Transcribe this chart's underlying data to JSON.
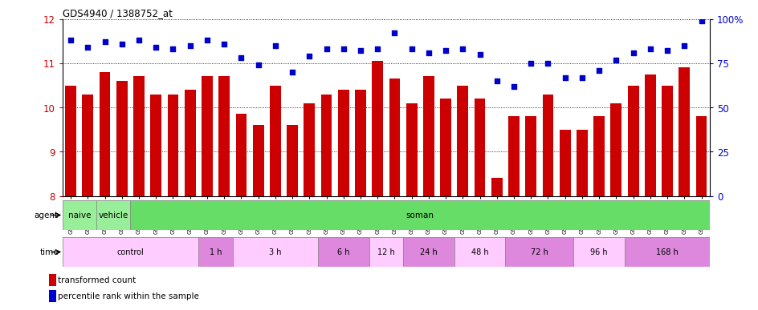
{
  "title": "GDS4940 / 1388752_at",
  "bar_labels": [
    "GSM338857",
    "GSM338858",
    "GSM338859",
    "GSM338862",
    "GSM338864",
    "GSM338877",
    "GSM338880",
    "GSM338860",
    "GSM338861",
    "GSM338863",
    "GSM338865",
    "GSM338866",
    "GSM338867",
    "GSM338868",
    "GSM338869",
    "GSM338870",
    "GSM338871",
    "GSM338872",
    "GSM338873",
    "GSM338874",
    "GSM338875",
    "GSM338876",
    "GSM338878",
    "GSM338879",
    "GSM338881",
    "GSM338882",
    "GSM338883",
    "GSM338884",
    "GSM338885",
    "GSM338886",
    "GSM338887",
    "GSM338888",
    "GSM338889",
    "GSM338890",
    "GSM338891",
    "GSM338892",
    "GSM338893",
    "GSM338894"
  ],
  "bar_values": [
    10.5,
    10.3,
    10.8,
    10.6,
    10.7,
    10.3,
    10.3,
    10.4,
    10.7,
    10.7,
    9.85,
    9.6,
    10.5,
    9.6,
    10.1,
    10.3,
    10.4,
    10.4,
    11.05,
    10.65,
    10.1,
    10.7,
    10.2,
    10.5,
    10.2,
    8.4,
    9.8,
    9.8,
    10.3,
    9.5,
    9.5,
    9.8,
    10.1,
    10.5,
    10.75,
    10.5,
    10.9,
    9.8
  ],
  "blue_values": [
    88,
    84,
    87,
    86,
    88,
    84,
    83,
    85,
    88,
    86,
    78,
    74,
    85,
    70,
    79,
    83,
    83,
    82,
    83,
    92,
    83,
    81,
    82,
    83,
    80,
    65,
    62,
    75,
    75,
    67,
    67,
    71,
    77,
    81,
    83,
    82,
    85,
    99
  ],
  "bar_color": "#cc0000",
  "dot_color": "#0000cc",
  "ylim_left": [
    8,
    12
  ],
  "ylim_right": [
    0,
    100
  ],
  "yticks_left": [
    8,
    9,
    10,
    11,
    12
  ],
  "yticks_right": [
    0,
    25,
    50,
    75,
    100
  ],
  "agent_spans": [
    {
      "label": "naive",
      "start": 0,
      "end": 2,
      "color": "#99ee99"
    },
    {
      "label": "vehicle",
      "start": 2,
      "end": 4,
      "color": "#99ee99"
    },
    {
      "label": "soman",
      "start": 4,
      "end": 38,
      "color": "#66dd66"
    }
  ],
  "time_spans": [
    {
      "label": "control",
      "start": 0,
      "end": 8,
      "color": "#ffccff"
    },
    {
      "label": "1 h",
      "start": 8,
      "end": 10,
      "color": "#dd88dd"
    },
    {
      "label": "3 h",
      "start": 10,
      "end": 15,
      "color": "#ffccff"
    },
    {
      "label": "6 h",
      "start": 15,
      "end": 18,
      "color": "#dd88dd"
    },
    {
      "label": "12 h",
      "start": 18,
      "end": 20,
      "color": "#ffccff"
    },
    {
      "label": "24 h",
      "start": 20,
      "end": 23,
      "color": "#dd88dd"
    },
    {
      "label": "48 h",
      "start": 23,
      "end": 26,
      "color": "#ffccff"
    },
    {
      "label": "72 h",
      "start": 26,
      "end": 30,
      "color": "#dd88dd"
    },
    {
      "label": "96 h",
      "start": 30,
      "end": 33,
      "color": "#ffccff"
    },
    {
      "label": "168 h",
      "start": 33,
      "end": 38,
      "color": "#dd88dd"
    }
  ],
  "legend_items": [
    {
      "label": "transformed count",
      "color": "#cc0000"
    },
    {
      "label": "percentile rank within the sample",
      "color": "#0000cc"
    }
  ]
}
